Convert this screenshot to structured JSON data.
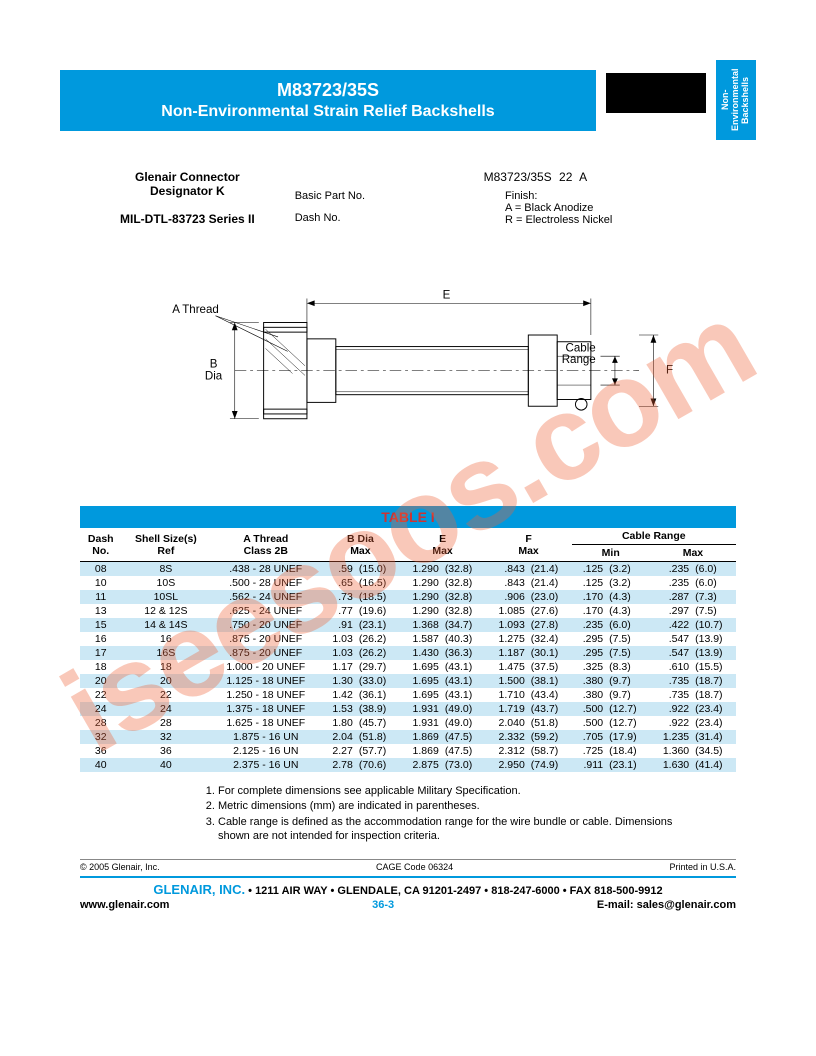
{
  "watermark": "iseesoos.com",
  "header": {
    "part_number": "M83723/35S",
    "description": "Non-Environmental Strain Relief Backshells",
    "side_tab": "Non-Environmental Backshells"
  },
  "spec": {
    "connector_line1": "Glenair Connector",
    "connector_line2": "Designator K",
    "mil_spec": "MIL-DTL-83723 Series II",
    "breakdown_part": "M83723/35S",
    "breakdown_dash": "22",
    "breakdown_finish": "A",
    "label_basic": "Basic Part No.",
    "label_dash": "Dash No.",
    "label_finish": "Finish:",
    "finish_a": "A = Black Anodize",
    "finish_r": "R = Electroless Nickel"
  },
  "diagram": {
    "a_thread": "A Thread",
    "b_dia": "B\nDia",
    "e": "E",
    "f": "F",
    "cable_range": "Cable\nRange"
  },
  "table": {
    "title": "TABLE I",
    "headers": {
      "dash": "Dash\nNo.",
      "shell": "Shell Size(s)\nRef",
      "thread": "A Thread\nClass 2B",
      "bdia": "B Dia\nMax",
      "e": "E\nMax",
      "f": "F\nMax",
      "cable_range": "Cable Range",
      "min": "Min",
      "max": "Max"
    },
    "rows": [
      {
        "dash": "08",
        "shell": "8S",
        "thread": ".438 - 28 UNEF",
        "b": ".59",
        "b_mm": "(15.0)",
        "e": "1.290",
        "e_mm": "(32.8)",
        "f": ".843",
        "f_mm": "(21.4)",
        "min": ".125",
        "min_mm": "(3.2)",
        "max": ".235",
        "max_mm": "(6.0)"
      },
      {
        "dash": "10",
        "shell": "10S",
        "thread": ".500 - 28 UNEF",
        "b": ".65",
        "b_mm": "(16.5)",
        "e": "1.290",
        "e_mm": "(32.8)",
        "f": ".843",
        "f_mm": "(21.4)",
        "min": ".125",
        "min_mm": "(3.2)",
        "max": ".235",
        "max_mm": "(6.0)"
      },
      {
        "dash": "11",
        "shell": "10SL",
        "thread": ".562 - 24 UNEF",
        "b": ".73",
        "b_mm": "(18.5)",
        "e": "1.290",
        "e_mm": "(32.8)",
        "f": ".906",
        "f_mm": "(23.0)",
        "min": ".170",
        "min_mm": "(4.3)",
        "max": ".287",
        "max_mm": "(7.3)"
      },
      {
        "dash": "13",
        "shell": "12 & 12S",
        "thread": ".625 - 24 UNEF",
        "b": ".77",
        "b_mm": "(19.6)",
        "e": "1.290",
        "e_mm": "(32.8)",
        "f": "1.085",
        "f_mm": "(27.6)",
        "min": ".170",
        "min_mm": "(4.3)",
        "max": ".297",
        "max_mm": "(7.5)"
      },
      {
        "dash": "15",
        "shell": "14 & 14S",
        "thread": ".750 - 20 UNEF",
        "b": ".91",
        "b_mm": "(23.1)",
        "e": "1.368",
        "e_mm": "(34.7)",
        "f": "1.093",
        "f_mm": "(27.8)",
        "min": ".235",
        "min_mm": "(6.0)",
        "max": ".422",
        "max_mm": "(10.7)"
      },
      {
        "dash": "16",
        "shell": "16",
        "thread": ".875 - 20 UNEF",
        "b": "1.03",
        "b_mm": "(26.2)",
        "e": "1.587",
        "e_mm": "(40.3)",
        "f": "1.275",
        "f_mm": "(32.4)",
        "min": ".295",
        "min_mm": "(7.5)",
        "max": ".547",
        "max_mm": "(13.9)"
      },
      {
        "dash": "17",
        "shell": "16S",
        "thread": ".875 - 20 UNEF",
        "b": "1.03",
        "b_mm": "(26.2)",
        "e": "1.430",
        "e_mm": "(36.3)",
        "f": "1.187",
        "f_mm": "(30.1)",
        "min": ".295",
        "min_mm": "(7.5)",
        "max": ".547",
        "max_mm": "(13.9)"
      },
      {
        "dash": "18",
        "shell": "18",
        "thread": "1.000 - 20 UNEF",
        "b": "1.17",
        "b_mm": "(29.7)",
        "e": "1.695",
        "e_mm": "(43.1)",
        "f": "1.475",
        "f_mm": "(37.5)",
        "min": ".325",
        "min_mm": "(8.3)",
        "max": ".610",
        "max_mm": "(15.5)"
      },
      {
        "dash": "20",
        "shell": "20",
        "thread": "1.125 - 18 UNEF",
        "b": "1.30",
        "b_mm": "(33.0)",
        "e": "1.695",
        "e_mm": "(43.1)",
        "f": "1.500",
        "f_mm": "(38.1)",
        "min": ".380",
        "min_mm": "(9.7)",
        "max": ".735",
        "max_mm": "(18.7)"
      },
      {
        "dash": "22",
        "shell": "22",
        "thread": "1.250 - 18 UNEF",
        "b": "1.42",
        "b_mm": "(36.1)",
        "e": "1.695",
        "e_mm": "(43.1)",
        "f": "1.710",
        "f_mm": "(43.4)",
        "min": ".380",
        "min_mm": "(9.7)",
        "max": ".735",
        "max_mm": "(18.7)"
      },
      {
        "dash": "24",
        "shell": "24",
        "thread": "1.375 - 18 UNEF",
        "b": "1.53",
        "b_mm": "(38.9)",
        "e": "1.931",
        "e_mm": "(49.0)",
        "f": "1.719",
        "f_mm": "(43.7)",
        "min": ".500",
        "min_mm": "(12.7)",
        "max": ".922",
        "max_mm": "(23.4)"
      },
      {
        "dash": "28",
        "shell": "28",
        "thread": "1.625 - 18 UNEF",
        "b": "1.80",
        "b_mm": "(45.7)",
        "e": "1.931",
        "e_mm": "(49.0)",
        "f": "2.040",
        "f_mm": "(51.8)",
        "min": ".500",
        "min_mm": "(12.7)",
        "max": ".922",
        "max_mm": "(23.4)"
      },
      {
        "dash": "32",
        "shell": "32",
        "thread": "1.875 - 16 UN",
        "b": "2.04",
        "b_mm": "(51.8)",
        "e": "1.869",
        "e_mm": "(47.5)",
        "f": "2.332",
        "f_mm": "(59.2)",
        "min": ".705",
        "min_mm": "(17.9)",
        "max": "1.235",
        "max_mm": "(31.4)"
      },
      {
        "dash": "36",
        "shell": "36",
        "thread": "2.125 - 16 UN",
        "b": "2.27",
        "b_mm": "(57.7)",
        "e": "1.869",
        "e_mm": "(47.5)",
        "f": "2.312",
        "f_mm": "(58.7)",
        "min": ".725",
        "min_mm": "(18.4)",
        "max": "1.360",
        "max_mm": "(34.5)"
      },
      {
        "dash": "40",
        "shell": "40",
        "thread": "2.375 - 16 UN",
        "b": "2.78",
        "b_mm": "(70.6)",
        "e": "2.875",
        "e_mm": "(73.0)",
        "f": "2.950",
        "f_mm": "(74.9)",
        "min": ".911",
        "min_mm": "(23.1)",
        "max": "1.630",
        "max_mm": "(41.4)"
      }
    ]
  },
  "notes": [
    "For complete dimensions see applicable Military Specification.",
    "Metric dimensions (mm) are indicated in parentheses.",
    "Cable range is defined as the accommodation range for the wire bundle or cable.  Dimensions shown are not intended for inspection criteria."
  ],
  "foot": {
    "copyright": "© 2005 Glenair, Inc.",
    "cage": "CAGE Code 06324",
    "printed": "Printed in U.S.A.",
    "company": "GLENAIR, INC.",
    "address": "1211 AIR WAY • GLENDALE, CA 91201-2497 • 818-247-6000 • FAX 818-500-9912",
    "web": "www.glenair.com",
    "page": "36-3",
    "email": "E-mail: sales@glenair.com"
  },
  "colors": {
    "brand_blue": "#0099dd",
    "row_alt": "#cce8f5",
    "watermark": "rgba(237,98,55,0.35)"
  }
}
